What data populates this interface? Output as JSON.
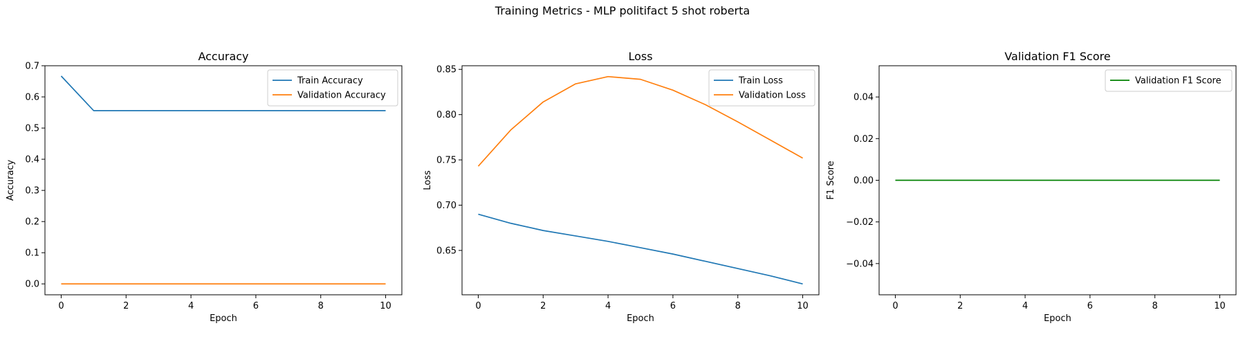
{
  "figure": {
    "suptitle": "Training Metrics - MLP politifact 5 shot roberta"
  },
  "chart_data": [
    {
      "type": "line",
      "title": "Accuracy",
      "xlabel": "Epoch",
      "ylabel": "Accuracy",
      "xlim": [
        -0.5,
        10.5
      ],
      "ylim": [
        -0.035,
        0.7
      ],
      "xticks": [
        0,
        2,
        4,
        6,
        8,
        10
      ],
      "yticks": [
        0.0,
        0.1,
        0.2,
        0.3,
        0.4,
        0.5,
        0.6,
        0.7
      ],
      "ytick_labels": [
        "0.0",
        "0.1",
        "0.2",
        "0.3",
        "0.4",
        "0.5",
        "0.6",
        "0.7"
      ],
      "x": [
        0,
        1,
        2,
        3,
        4,
        5,
        6,
        7,
        8,
        9,
        10
      ],
      "legend_position": "upper right",
      "series": [
        {
          "name": "Train Accuracy",
          "color": "#1f77b4",
          "values": [
            0.667,
            0.556,
            0.556,
            0.556,
            0.556,
            0.556,
            0.556,
            0.556,
            0.556,
            0.556,
            0.556
          ]
        },
        {
          "name": "Validation Accuracy",
          "color": "#ff7f0e",
          "values": [
            0.0,
            0.0,
            0.0,
            0.0,
            0.0,
            0.0,
            0.0,
            0.0,
            0.0,
            0.0,
            0.0
          ]
        }
      ]
    },
    {
      "type": "line",
      "title": "Loss",
      "xlabel": "Epoch",
      "ylabel": "Loss",
      "xlim": [
        -0.5,
        10.5
      ],
      "ylim": [
        0.601,
        0.854
      ],
      "xticks": [
        0,
        2,
        4,
        6,
        8,
        10
      ],
      "yticks": [
        0.65,
        0.7,
        0.75,
        0.8,
        0.85
      ],
      "ytick_labels": [
        "0.65",
        "0.70",
        "0.75",
        "0.80",
        "0.85"
      ],
      "x": [
        0,
        1,
        2,
        3,
        4,
        5,
        6,
        7,
        8,
        9,
        10
      ],
      "legend_position": "upper right",
      "series": [
        {
          "name": "Train Loss",
          "color": "#1f77b4",
          "values": [
            0.69,
            0.68,
            0.672,
            0.666,
            0.66,
            0.653,
            0.646,
            0.638,
            0.63,
            0.622,
            0.613
          ]
        },
        {
          "name": "Validation Loss",
          "color": "#ff7f0e",
          "values": [
            0.743,
            0.783,
            0.814,
            0.834,
            0.842,
            0.839,
            0.827,
            0.811,
            0.792,
            0.772,
            0.752
          ]
        }
      ]
    },
    {
      "type": "line",
      "title": "Validation F1 Score",
      "xlabel": "Epoch",
      "ylabel": "F1 Score",
      "xlim": [
        -0.5,
        10.5
      ],
      "ylim": [
        -0.055,
        0.055
      ],
      "xticks": [
        0,
        2,
        4,
        6,
        8,
        10
      ],
      "yticks": [
        -0.04,
        -0.02,
        0.0,
        0.02,
        0.04
      ],
      "ytick_labels": [
        "−0.04",
        "−0.02",
        "0.00",
        "0.02",
        "0.04"
      ],
      "x": [
        0,
        1,
        2,
        3,
        4,
        5,
        6,
        7,
        8,
        9,
        10
      ],
      "legend_position": "upper right",
      "series": [
        {
          "name": "Validation F1 Score",
          "color": "#008000",
          "values": [
            0.0,
            0.0,
            0.0,
            0.0,
            0.0,
            0.0,
            0.0,
            0.0,
            0.0,
            0.0,
            0.0
          ]
        }
      ]
    }
  ]
}
